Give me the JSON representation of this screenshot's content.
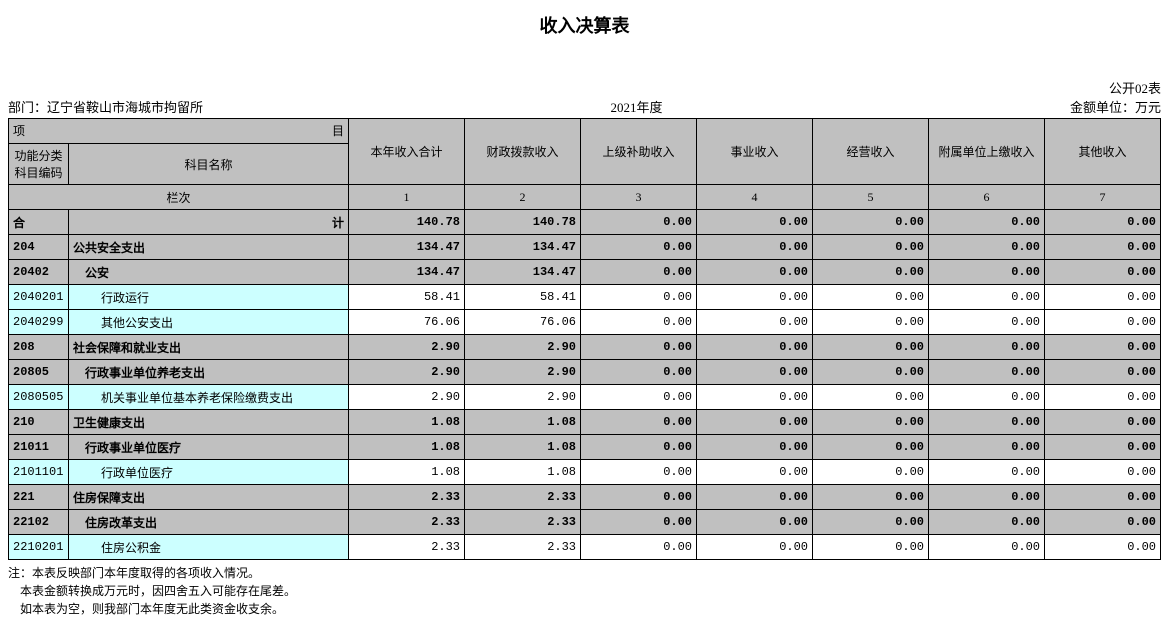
{
  "title": "收入决算表",
  "header": {
    "table_code": "公开02表",
    "dept_label": "部门：",
    "dept_value": "辽宁省鞍山市海城市拘留所",
    "year": "2021年度",
    "unit": "金额单位：万元"
  },
  "columns": {
    "xm": "项",
    "mu": "目",
    "code_header": "功能分类\n科目编码",
    "name_header": "科目名称",
    "cols": [
      "本年收入合计",
      "财政拨款收入",
      "上级补助收入",
      "事业收入",
      "经营收入",
      "附属单位上缴收入",
      "其他收入"
    ],
    "lanci": "栏次",
    "nums": [
      "1",
      "2",
      "3",
      "4",
      "5",
      "6",
      "7"
    ],
    "heji_left": "合",
    "heji_right": "计"
  },
  "rows": [
    {
      "type": "total",
      "code": "",
      "name": "",
      "vals": [
        "140.78",
        "140.78",
        "0.00",
        "0.00",
        "0.00",
        "0.00",
        "0.00"
      ]
    },
    {
      "type": "gray-bold",
      "code": "204",
      "name": "公共安全支出",
      "indent": 0,
      "vals": [
        "134.47",
        "134.47",
        "0.00",
        "0.00",
        "0.00",
        "0.00",
        "0.00"
      ]
    },
    {
      "type": "gray-bold",
      "code": "20402",
      "name": "公安",
      "indent": 1,
      "vals": [
        "134.47",
        "134.47",
        "0.00",
        "0.00",
        "0.00",
        "0.00",
        "0.00"
      ]
    },
    {
      "type": "cyan",
      "code": "2040201",
      "name": "行政运行",
      "indent": 2,
      "vals": [
        "58.41",
        "58.41",
        "0.00",
        "0.00",
        "0.00",
        "0.00",
        "0.00"
      ]
    },
    {
      "type": "cyan",
      "code": "2040299",
      "name": "其他公安支出",
      "indent": 2,
      "vals": [
        "76.06",
        "76.06",
        "0.00",
        "0.00",
        "0.00",
        "0.00",
        "0.00"
      ]
    },
    {
      "type": "gray-bold",
      "code": "208",
      "name": "社会保障和就业支出",
      "indent": 0,
      "vals": [
        "2.90",
        "2.90",
        "0.00",
        "0.00",
        "0.00",
        "0.00",
        "0.00"
      ]
    },
    {
      "type": "gray-bold",
      "code": "20805",
      "name": "行政事业单位养老支出",
      "indent": 1,
      "vals": [
        "2.90",
        "2.90",
        "0.00",
        "0.00",
        "0.00",
        "0.00",
        "0.00"
      ]
    },
    {
      "type": "cyan",
      "code": "2080505",
      "name": "机关事业单位基本养老保险缴费支出",
      "indent": 2,
      "vals": [
        "2.90",
        "2.90",
        "0.00",
        "0.00",
        "0.00",
        "0.00",
        "0.00"
      ]
    },
    {
      "type": "gray-bold",
      "code": "210",
      "name": "卫生健康支出",
      "indent": 0,
      "vals": [
        "1.08",
        "1.08",
        "0.00",
        "0.00",
        "0.00",
        "0.00",
        "0.00"
      ]
    },
    {
      "type": "gray-bold",
      "code": "21011",
      "name": "行政事业单位医疗",
      "indent": 1,
      "vals": [
        "1.08",
        "1.08",
        "0.00",
        "0.00",
        "0.00",
        "0.00",
        "0.00"
      ]
    },
    {
      "type": "cyan",
      "code": "2101101",
      "name": "行政单位医疗",
      "indent": 2,
      "vals": [
        "1.08",
        "1.08",
        "0.00",
        "0.00",
        "0.00",
        "0.00",
        "0.00"
      ]
    },
    {
      "type": "gray-bold",
      "code": "221",
      "name": "住房保障支出",
      "indent": 0,
      "vals": [
        "2.33",
        "2.33",
        "0.00",
        "0.00",
        "0.00",
        "0.00",
        "0.00"
      ]
    },
    {
      "type": "gray-bold",
      "code": "22102",
      "name": "住房改革支出",
      "indent": 1,
      "vals": [
        "2.33",
        "2.33",
        "0.00",
        "0.00",
        "0.00",
        "0.00",
        "0.00"
      ]
    },
    {
      "type": "cyan",
      "code": "2210201",
      "name": "住房公积金",
      "indent": 2,
      "vals": [
        "2.33",
        "2.33",
        "0.00",
        "0.00",
        "0.00",
        "0.00",
        "0.00"
      ]
    }
  ],
  "notes": [
    "注：本表反映部门本年度取得的各项收入情况。",
    "    本表金额转换成万元时，因四舍五入可能存在尾差。",
    "    如本表为空，则我部门本年度无此类资金收支余。"
  ],
  "style": {
    "header_bg": "#c0c0c0",
    "cyan_bg": "#ccffff",
    "border_color": "#000000",
    "font_body": 12,
    "font_title": 18
  }
}
